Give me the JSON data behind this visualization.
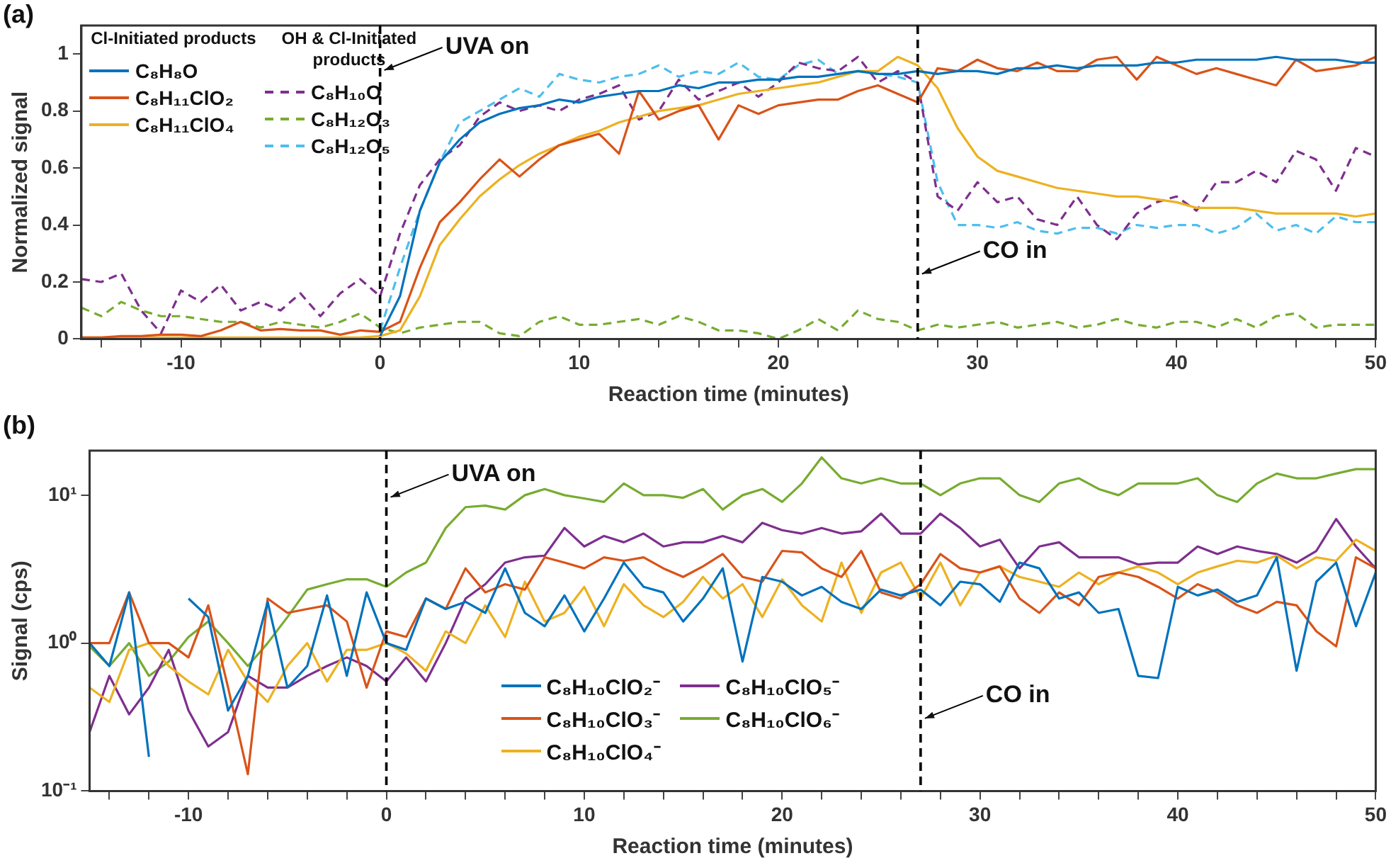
{
  "chart_data": [
    {
      "type": "line",
      "title": "(a)",
      "xlabel": "Reaction time (minutes)",
      "ylabel": "Normalized signal",
      "legend": "top left",
      "grid": false,
      "marker": "none",
      "annotations": [
        "Cl-Initiated products",
        "OH & Cl-Initiated products"
      ],
      "xlim": [
        -15,
        50
      ],
      "xticks": [
        {
          "value": -14,
          "label": null
        },
        {
          "value": -12,
          "label": null
        },
        -10,
        {
          "value": -8,
          "label": null
        },
        {
          "value": -6,
          "label": null
        },
        {
          "value": -4,
          "label": null
        },
        {
          "value": -2,
          "label": null
        },
        0,
        {
          "value": 2,
          "label": null
        },
        {
          "value": 4,
          "label": null
        },
        {
          "value": 6,
          "label": null
        },
        {
          "value": 8,
          "label": null
        },
        10,
        {
          "value": 12,
          "label": null
        },
        {
          "value": 14,
          "label": null
        },
        {
          "value": 16,
          "label": null
        },
        {
          "value": 18,
          "label": null
        },
        20,
        {
          "value": 22,
          "label": null
        },
        {
          "value": 24,
          "label": null
        },
        {
          "value": 26,
          "label": null
        },
        {
          "value": 28,
          "label": null
        },
        30,
        {
          "value": 32,
          "label": null
        },
        {
          "value": 34,
          "label": null
        },
        {
          "value": 36,
          "label": null
        },
        {
          "value": 38,
          "label": null
        },
        40,
        {
          "value": 42,
          "label": null
        },
        {
          "value": 44,
          "label": null
        },
        {
          "value": 46,
          "label": null
        },
        {
          "value": 48,
          "label": null
        },
        50
      ],
      "ylim": [
        0,
        1.1
      ],
      "yticks": [
        0,
        0.2,
        0.4,
        0.6,
        0.8,
        1
      ],
      "ref_lines": [
        {
          "axis": "x",
          "value": 0,
          "label": "UVA on",
          "color": "#000000",
          "line_style": "dashed"
        },
        {
          "axis": "x",
          "value": 27,
          "label": "CO in",
          "color": "#000000",
          "line_style": "dashed"
        }
      ],
      "x": [
        -15,
        -14,
        -13,
        -12,
        -11,
        -10,
        -9,
        -8,
        -7,
        -6,
        -5,
        -4,
        -3,
        -2,
        -1,
        0,
        1,
        2,
        3,
        4,
        5,
        6,
        7,
        8,
        9,
        10,
        11,
        12,
        13,
        14,
        15,
        16,
        17,
        18,
        19,
        20,
        21,
        22,
        23,
        24,
        25,
        26,
        27,
        28,
        29,
        30,
        31,
        32,
        33,
        34,
        35,
        36,
        37,
        38,
        39,
        40,
        41,
        42,
        43,
        44,
        45,
        46,
        47,
        48,
        49,
        50
      ],
      "series": [
        {
          "name": "C₈H₈O",
          "color": "#0072bd",
          "line_style": "solid",
          "values": [
            null,
            null,
            null,
            null,
            null,
            null,
            null,
            null,
            null,
            null,
            null,
            null,
            null,
            null,
            null,
            0.01,
            0.15,
            0.45,
            0.62,
            0.7,
            0.76,
            0.79,
            0.81,
            0.82,
            0.84,
            0.83,
            0.85,
            0.86,
            0.87,
            0.87,
            0.89,
            0.88,
            0.9,
            0.9,
            0.91,
            0.91,
            0.92,
            0.92,
            0.93,
            0.94,
            0.93,
            0.93,
            0.94,
            0.93,
            0.94,
            0.94,
            0.93,
            0.95,
            0.95,
            0.96,
            0.95,
            0.96,
            0.96,
            0.96,
            0.97,
            0.97,
            0.98,
            0.98,
            0.98,
            0.98,
            0.99,
            0.98,
            0.98,
            0.98,
            0.97,
            0.97
          ]
        },
        {
          "name": "C₈H₁₁ClO₂",
          "color": "#d95319",
          "line_style": "solid",
          "values": [
            0.005,
            0.005,
            0.01,
            0.01,
            0.015,
            0.015,
            0.01,
            0.03,
            0.06,
            0.03,
            0.035,
            0.03,
            0.03,
            0.015,
            0.03,
            0.025,
            0.06,
            0.25,
            0.41,
            0.48,
            0.56,
            0.63,
            0.57,
            0.63,
            0.68,
            0.7,
            0.72,
            0.65,
            0.87,
            0.77,
            0.8,
            0.82,
            0.7,
            0.82,
            0.79,
            0.82,
            0.83,
            0.84,
            0.84,
            0.87,
            0.89,
            0.86,
            0.83,
            0.95,
            0.94,
            0.98,
            0.95,
            0.94,
            0.97,
            0.94,
            0.94,
            0.98,
            0.99,
            0.91,
            0.99,
            0.96,
            0.93,
            0.95,
            0.93,
            0.91,
            0.89,
            0.98,
            0.94,
            0.95,
            0.96,
            0.99
          ]
        },
        {
          "name": "C₈H₁₁ClO₄",
          "color": "#edb120",
          "line_style": "solid",
          "values": [
            0.005,
            0.005,
            0.005,
            0.005,
            0.005,
            0.005,
            0.005,
            0.005,
            0.005,
            0.005,
            0.005,
            0.005,
            0.005,
            0.005,
            0.005,
            0.01,
            0.03,
            0.15,
            0.33,
            0.42,
            0.5,
            0.56,
            0.61,
            0.65,
            0.68,
            0.71,
            0.73,
            0.76,
            0.78,
            0.8,
            0.81,
            0.82,
            0.84,
            0.86,
            0.87,
            0.88,
            0.89,
            0.9,
            0.92,
            0.94,
            0.94,
            0.99,
            0.96,
            0.88,
            0.74,
            0.64,
            0.59,
            0.57,
            0.55,
            0.53,
            0.52,
            0.51,
            0.5,
            0.5,
            0.49,
            0.48,
            0.46,
            0.46,
            0.46,
            0.45,
            0.44,
            0.44,
            0.44,
            0.44,
            0.43,
            0.44
          ]
        },
        {
          "name": "C₈H₁₀O",
          "color": "#7e2f8e",
          "line_style": "dashed",
          "values": [
            0.21,
            0.2,
            0.23,
            0.1,
            0.02,
            0.17,
            0.13,
            0.19,
            0.1,
            0.13,
            0.1,
            0.16,
            0.08,
            0.16,
            0.21,
            0.15,
            0.37,
            0.54,
            0.63,
            0.68,
            0.78,
            0.83,
            0.8,
            0.82,
            0.8,
            0.84,
            0.86,
            0.89,
            0.77,
            0.8,
            0.91,
            0.84,
            0.87,
            0.9,
            0.85,
            0.9,
            0.97,
            0.95,
            0.94,
            0.99,
            0.9,
            0.94,
            0.9,
            0.5,
            0.45,
            0.55,
            0.48,
            0.5,
            0.42,
            0.4,
            0.5,
            0.4,
            0.35,
            0.44,
            0.48,
            0.5,
            0.45,
            0.55,
            0.55,
            0.59,
            0.55,
            0.66,
            0.63,
            0.52,
            0.67,
            0.64
          ]
        },
        {
          "name": "C₈H₁₂O₃",
          "color": "#77ac30",
          "line_style": "dashed",
          "values": [
            0.11,
            0.08,
            0.13,
            0.1,
            0.08,
            0.08,
            0.07,
            0.06,
            0.06,
            0.04,
            0.06,
            0.05,
            0.04,
            0.06,
            0.09,
            0.04,
            0.02,
            0.04,
            0.05,
            0.06,
            0.06,
            0.02,
            0.01,
            0.06,
            0.08,
            0.05,
            0.05,
            0.06,
            0.07,
            0.05,
            0.08,
            0.06,
            0.03,
            0.03,
            0.02,
            0,
            0.03,
            0.07,
            0.03,
            0.1,
            0.07,
            0.06,
            0.03,
            0.05,
            0.04,
            0.05,
            0.06,
            0.04,
            0.05,
            0.06,
            0.04,
            0.05,
            0.07,
            0.05,
            0.04,
            0.06,
            0.06,
            0.04,
            0.07,
            0.04,
            0.08,
            0.09,
            0.04,
            0.05,
            0.05,
            0.05
          ]
        },
        {
          "name": "C₈H₁₂O₅",
          "color": "#4dbeee",
          "line_style": "dashed",
          "values": [
            null,
            null,
            null,
            null,
            null,
            null,
            null,
            null,
            null,
            null,
            null,
            null,
            null,
            null,
            null,
            0.03,
            0.25,
            0.45,
            0.62,
            0.76,
            0.8,
            0.84,
            0.88,
            0.85,
            0.93,
            0.91,
            0.9,
            0.92,
            0.93,
            0.96,
            0.92,
            0.94,
            0.93,
            0.97,
            0.92,
            0.91,
            0.96,
            0.98,
            0.93,
            0.94,
            0.93,
            0.92,
            0.9,
            0.55,
            0.4,
            0.4,
            0.39,
            0.41,
            0.38,
            0.37,
            0.39,
            0.39,
            0.37,
            0.4,
            0.39,
            0.4,
            0.4,
            0.37,
            0.39,
            0.44,
            0.38,
            0.4,
            0.37,
            0.43,
            0.41,
            0.41
          ]
        }
      ]
    },
    {
      "type": "line",
      "title": "(b)",
      "xlabel": "Reaction time (minutes)",
      "ylabel": "Signal (cps)",
      "legend": "bottom",
      "grid": false,
      "marker": "none",
      "log": "y",
      "xlim": [
        -15,
        50
      ],
      "xticks": [
        {
          "value": -14,
          "label": null
        },
        {
          "value": -12,
          "label": null
        },
        -10,
        {
          "value": -8,
          "label": null
        },
        {
          "value": -6,
          "label": null
        },
        {
          "value": -4,
          "label": null
        },
        {
          "value": -2,
          "label": null
        },
        0,
        {
          "value": 2,
          "label": null
        },
        {
          "value": 4,
          "label": null
        },
        {
          "value": 6,
          "label": null
        },
        {
          "value": 8,
          "label": null
        },
        10,
        {
          "value": 12,
          "label": null
        },
        {
          "value": 14,
          "label": null
        },
        {
          "value": 16,
          "label": null
        },
        {
          "value": 18,
          "label": null
        },
        20,
        {
          "value": 22,
          "label": null
        },
        {
          "value": 24,
          "label": null
        },
        {
          "value": 26,
          "label": null
        },
        {
          "value": 28,
          "label": null
        },
        30,
        {
          "value": 32,
          "label": null
        },
        {
          "value": 34,
          "label": null
        },
        {
          "value": 36,
          "label": null
        },
        {
          "value": 38,
          "label": null
        },
        40,
        {
          "value": 42,
          "label": null
        },
        {
          "value": 44,
          "label": null
        },
        {
          "value": 46,
          "label": null
        },
        {
          "value": 48,
          "label": null
        },
        50
      ],
      "ylim": [
        0.1,
        20
      ],
      "yticks": [
        {
          "value": 0.1,
          "label": "10⁻¹"
        },
        {
          "value": 1,
          "label": "10⁰"
        },
        {
          "value": 10,
          "label": "10¹"
        }
      ],
      "ref_lines": [
        {
          "axis": "x",
          "value": 0,
          "label": "UVA on",
          "color": "#000000",
          "line_style": "dashed"
        },
        {
          "axis": "x",
          "value": 27,
          "label": "CO in",
          "color": "#000000",
          "line_style": "dashed"
        }
      ],
      "x": [
        -15,
        -14,
        -13,
        -12,
        -11,
        -10,
        -9,
        -8,
        -7,
        -6,
        -5,
        -4,
        -3,
        -2,
        -1,
        0,
        1,
        2,
        3,
        4,
        5,
        6,
        7,
        8,
        9,
        10,
        11,
        12,
        13,
        14,
        15,
        16,
        17,
        18,
        19,
        20,
        21,
        22,
        23,
        24,
        25,
        26,
        27,
        28,
        29,
        30,
        31,
        32,
        33,
        34,
        35,
        36,
        37,
        38,
        39,
        40,
        41,
        42,
        43,
        44,
        45,
        46,
        47,
        48,
        49,
        50
      ],
      "series": [
        {
          "name": "C₈H₁₀ClO₂⁻",
          "color": "#0072bd",
          "values": [
            1.0,
            0.7,
            2.2,
            0.17,
            null,
            2.0,
            1.5,
            0.35,
            0.6,
            1.9,
            0.5,
            0.7,
            2.1,
            0.6,
            2.2,
            1.0,
            0.9,
            2.0,
            1.7,
            1.9,
            1.6,
            3.2,
            1.6,
            1.3,
            2.1,
            1.2,
            2.0,
            3.5,
            2.4,
            2.2,
            1.4,
            2.0,
            3.2,
            0.75,
            2.8,
            2.6,
            2.1,
            2.4,
            1.9,
            1.7,
            2.3,
            2.1,
            2.3,
            1.8,
            2.6,
            2.5,
            1.9,
            3.5,
            3.2,
            2.0,
            2.2,
            1.6,
            1.7,
            0.6,
            0.58,
            2.4,
            2.1,
            2.3,
            1.9,
            2.1,
            3.8,
            0.65,
            2.6,
            3.5,
            1.3,
            3.0
          ]
        },
        {
          "name": "C₈H₁₀ClO₃⁻",
          "color": "#d95319",
          "values": [
            1.0,
            1.0,
            2.2,
            1.0,
            1.0,
            0.8,
            1.8,
            0.5,
            0.13,
            2.0,
            1.6,
            1.7,
            1.8,
            1.4,
            0.5,
            1.2,
            1.1,
            2.0,
            1.7,
            3.2,
            2.2,
            2.5,
            2.3,
            3.8,
            3.5,
            3.2,
            3.8,
            3.6,
            3.8,
            3.2,
            2.8,
            3.3,
            4.0,
            2.8,
            2.6,
            4.2,
            4.1,
            3.2,
            2.8,
            4.2,
            2.2,
            2.0,
            2.5,
            4.0,
            3.2,
            3.0,
            3.3,
            2.0,
            1.6,
            2.2,
            1.8,
            2.8,
            3.0,
            2.8,
            2.4,
            2.0,
            2.5,
            2.2,
            1.8,
            1.6,
            1.9,
            1.8,
            1.2,
            0.95,
            3.8,
            3.2
          ]
        },
        {
          "name": "C₈H₁₀ClO₄⁻",
          "color": "#edb120",
          "values": [
            0.5,
            0.4,
            0.9,
            1.0,
            0.7,
            0.55,
            0.45,
            0.9,
            0.55,
            0.4,
            0.7,
            1.0,
            0.55,
            0.9,
            0.9,
            1.0,
            0.85,
            0.65,
            1.2,
            1.0,
            1.8,
            1.1,
            2.6,
            1.4,
            1.6,
            2.4,
            1.3,
            2.5,
            1.8,
            1.5,
            1.9,
            2.8,
            2.0,
            2.5,
            1.5,
            2.7,
            1.8,
            1.4,
            3.5,
            1.6,
            3.0,
            3.5,
            2.0,
            3.5,
            1.8,
            3.0,
            3.3,
            2.8,
            2.6,
            2.4,
            3.0,
            2.5,
            3.0,
            3.3,
            3.0,
            2.5,
            3.0,
            3.3,
            3.6,
            3.5,
            3.9,
            3.2,
            3.8,
            3.6,
            5.0,
            4.2
          ]
        },
        {
          "name": "C₈H₁₀ClO₅⁻",
          "color": "#7e2f8e",
          "values": [
            0.25,
            0.6,
            0.33,
            0.5,
            0.9,
            0.35,
            0.2,
            0.25,
            0.6,
            0.5,
            0.5,
            0.6,
            0.7,
            0.8,
            0.7,
            0.55,
            0.8,
            0.55,
            1.0,
            2.0,
            2.5,
            3.5,
            3.8,
            3.9,
            6,
            4.5,
            5.3,
            4.8,
            5.5,
            4.5,
            4.8,
            4.8,
            5.3,
            4.8,
            6.5,
            5.8,
            5.5,
            6.0,
            5.5,
            5.7,
            7.5,
            5.5,
            5.5,
            7.5,
            6,
            4.5,
            5,
            3.2,
            4.5,
            4.8,
            3.8,
            3.8,
            3.8,
            3.4,
            3.5,
            3.5,
            4.5,
            4.0,
            4.5,
            4.2,
            4.0,
            3.5,
            4.2,
            6.9,
            4.5,
            3.2
          ]
        },
        {
          "name": "C₈H₁₀ClO₆⁻",
          "color": "#77ac30",
          "values": [
            0.95,
            0.7,
            1.0,
            0.6,
            0.75,
            1.1,
            1.4,
            1.0,
            0.7,
            1.0,
            1.5,
            2.3,
            2.5,
            2.7,
            2.7,
            2.4,
            3.0,
            3.5,
            6,
            8.3,
            8.5,
            8,
            10,
            11,
            10,
            9.5,
            9,
            12,
            10,
            10,
            9.6,
            11,
            8,
            10,
            11,
            9,
            12,
            18,
            13,
            12,
            13,
            12,
            12,
            10,
            12,
            13,
            13,
            10,
            9,
            12,
            13,
            11,
            10,
            12,
            12,
            12,
            13,
            10,
            9,
            12,
            14,
            13,
            13,
            14,
            15,
            15
          ]
        }
      ]
    }
  ]
}
